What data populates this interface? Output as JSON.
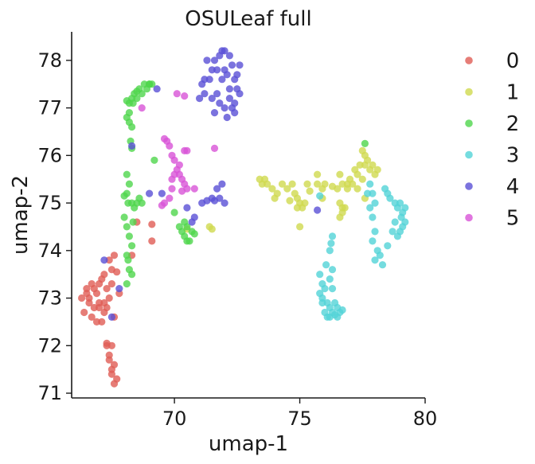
{
  "chart_data": {
    "type": "scatter",
    "title": "OSULeaf full",
    "xlabel": "umap-1",
    "ylabel": "umap-2",
    "xlim": [
      65.9,
      80.0
    ],
    "ylim": [
      70.9,
      78.6
    ],
    "xticks": [
      70,
      75,
      80
    ],
    "yticks": [
      71,
      72,
      73,
      74,
      75,
      76,
      77,
      78
    ],
    "legend_position": "right",
    "point_opacity": 0.8,
    "series": [
      {
        "name": "0",
        "color": "#e05c55",
        "points": [
          [
            66.3,
            73.0
          ],
          [
            66.4,
            72.7
          ],
          [
            66.5,
            73.2
          ],
          [
            66.6,
            72.9
          ],
          [
            66.7,
            73.3
          ],
          [
            66.8,
            72.8
          ],
          [
            66.9,
            73.1
          ],
          [
            67.0,
            72.9
          ],
          [
            67.1,
            73.4
          ],
          [
            67.2,
            72.9
          ],
          [
            66.5,
            73.1
          ],
          [
            66.7,
            72.6
          ],
          [
            66.9,
            72.5
          ],
          [
            67.0,
            72.8
          ],
          [
            67.2,
            73.5
          ],
          [
            67.3,
            73.2
          ],
          [
            67.4,
            73.0
          ],
          [
            67.5,
            73.3
          ],
          [
            67.3,
            72.8
          ],
          [
            67.6,
            72.6
          ],
          [
            67.1,
            72.5
          ],
          [
            67.5,
            73.6
          ],
          [
            67.6,
            73.9
          ],
          [
            67.7,
            73.55
          ],
          [
            67.4,
            73.8
          ],
          [
            67.8,
            73.1
          ],
          [
            67.2,
            72.7
          ],
          [
            66.8,
            73.2
          ],
          [
            67.0,
            73.3
          ],
          [
            66.6,
            73.0
          ],
          [
            67.3,
            72.05
          ],
          [
            67.5,
            72.0
          ],
          [
            67.4,
            71.8
          ],
          [
            67.6,
            71.6
          ],
          [
            67.5,
            71.4
          ],
          [
            67.7,
            71.3
          ],
          [
            67.6,
            71.2
          ],
          [
            67.5,
            71.5
          ],
          [
            67.4,
            71.7
          ],
          [
            67.3,
            72.0
          ],
          [
            68.5,
            74.6
          ],
          [
            69.1,
            74.55
          ],
          [
            69.1,
            74.2
          ],
          [
            68.3,
            73.9
          ]
        ]
      },
      {
        "name": "1",
        "color": "#cfd94f",
        "points": [
          [
            73.4,
            75.5
          ],
          [
            73.5,
            75.4
          ],
          [
            73.7,
            75.4
          ],
          [
            73.9,
            75.3
          ],
          [
            74.1,
            75.2
          ],
          [
            74.3,
            75.4
          ],
          [
            74.5,
            75.3
          ],
          [
            74.7,
            75.4
          ],
          [
            74.8,
            75.2
          ],
          [
            74.9,
            75.1
          ],
          [
            75.0,
            75.0
          ],
          [
            75.1,
            74.9
          ],
          [
            75.2,
            75.0
          ],
          [
            74.9,
            74.9
          ],
          [
            75.0,
            74.5
          ],
          [
            75.3,
            75.4
          ],
          [
            75.4,
            75.25
          ],
          [
            75.7,
            75.4
          ],
          [
            75.9,
            75.3
          ],
          [
            76.0,
            75.4
          ],
          [
            75.9,
            75.1
          ],
          [
            75.7,
            75.6
          ],
          [
            76.3,
            75.35
          ],
          [
            76.5,
            75.3
          ],
          [
            76.6,
            75.0
          ],
          [
            76.7,
            74.9
          ],
          [
            76.6,
            74.7
          ],
          [
            76.7,
            74.8
          ],
          [
            76.8,
            74.9
          ],
          [
            76.9,
            75.3
          ],
          [
            77.0,
            75.5
          ],
          [
            77.1,
            75.4
          ],
          [
            77.2,
            75.7
          ],
          [
            77.3,
            75.6
          ],
          [
            77.4,
            75.8
          ],
          [
            77.5,
            75.5
          ],
          [
            77.6,
            75.8
          ],
          [
            77.7,
            75.9
          ],
          [
            77.8,
            75.7
          ],
          [
            77.9,
            75.8
          ],
          [
            78.0,
            75.6
          ],
          [
            78.1,
            75.7
          ],
          [
            77.3,
            75.3
          ],
          [
            76.9,
            75.4
          ],
          [
            77.6,
            75.1
          ],
          [
            76.6,
            75.6
          ],
          [
            76.7,
            75.4
          ],
          [
            73.6,
            75.5
          ],
          [
            74.0,
            75.1
          ],
          [
            74.6,
            75.05
          ],
          [
            70.5,
            74.45
          ],
          [
            71.4,
            74.5
          ],
          [
            77.6,
            76.0
          ],
          [
            77.5,
            76.1
          ],
          [
            71.5,
            74.45
          ]
        ]
      },
      {
        "name": "2",
        "color": "#4fd64c",
        "points": [
          [
            68.2,
            77.1
          ],
          [
            68.3,
            77.2
          ],
          [
            68.4,
            77.3
          ],
          [
            68.5,
            77.2
          ],
          [
            68.6,
            77.4
          ],
          [
            68.8,
            77.5
          ],
          [
            69.0,
            77.5
          ],
          [
            69.1,
            77.5
          ],
          [
            68.9,
            77.4
          ],
          [
            68.7,
            77.3
          ],
          [
            68.35,
            77.1
          ],
          [
            68.1,
            76.8
          ],
          [
            68.2,
            76.7
          ],
          [
            68.3,
            76.6
          ],
          [
            68.25,
            76.3
          ],
          [
            68.3,
            76.15
          ],
          [
            68.1,
            75.6
          ],
          [
            68.2,
            75.4
          ],
          [
            68.1,
            75.2
          ],
          [
            68.15,
            75.0
          ],
          [
            68.0,
            74.7
          ],
          [
            68.1,
            74.5
          ],
          [
            68.2,
            74.3
          ],
          [
            68.3,
            74.1
          ],
          [
            68.15,
            73.8
          ],
          [
            68.2,
            73.6
          ],
          [
            68.3,
            73.5
          ],
          [
            68.1,
            73.3
          ],
          [
            68.4,
            74.9
          ],
          [
            68.5,
            75.0
          ],
          [
            68.6,
            75.1
          ],
          [
            68.35,
            74.6
          ],
          [
            68.7,
            75.0
          ],
          [
            68.3,
            75.0
          ],
          [
            68.0,
            75.15
          ],
          [
            70.0,
            74.8
          ],
          [
            70.2,
            74.5
          ],
          [
            70.3,
            74.4
          ],
          [
            70.4,
            74.3
          ],
          [
            70.5,
            74.2
          ],
          [
            70.6,
            74.2
          ],
          [
            70.7,
            74.4
          ],
          [
            70.8,
            74.35
          ],
          [
            70.4,
            74.6
          ],
          [
            70.5,
            74.5
          ],
          [
            69.2,
            75.9
          ],
          [
            68.1,
            73.9
          ],
          [
            77.6,
            76.25
          ],
          [
            69.0,
            77.5
          ],
          [
            68.5,
            77.35
          ],
          [
            68.1,
            77.15
          ],
          [
            68.2,
            76.9
          ]
        ]
      },
      {
        "name": "3",
        "color": "#52d3d7",
        "points": [
          [
            75.8,
            73.5
          ],
          [
            75.9,
            73.3
          ],
          [
            76.0,
            73.2
          ],
          [
            75.9,
            73.0
          ],
          [
            76.1,
            72.9
          ],
          [
            76.0,
            72.7
          ],
          [
            76.2,
            72.8
          ],
          [
            76.3,
            72.7
          ],
          [
            76.2,
            72.6
          ],
          [
            76.4,
            72.9
          ],
          [
            76.5,
            72.8
          ],
          [
            76.6,
            72.7
          ],
          [
            76.7,
            72.75
          ],
          [
            76.5,
            72.6
          ],
          [
            76.3,
            73.2
          ],
          [
            76.2,
            73.4
          ],
          [
            76.3,
            73.6
          ],
          [
            76.2,
            74.0
          ],
          [
            76.3,
            74.3
          ],
          [
            76.25,
            74.15
          ],
          [
            75.9,
            72.9
          ],
          [
            75.8,
            73.1
          ],
          [
            76.05,
            73.7
          ],
          [
            76.4,
            72.65
          ],
          [
            76.1,
            72.6
          ],
          [
            77.8,
            75.4
          ],
          [
            77.9,
            75.2
          ],
          [
            78.0,
            75.0
          ],
          [
            77.8,
            74.9
          ],
          [
            77.9,
            74.7
          ],
          [
            78.0,
            74.4
          ],
          [
            77.9,
            74.2
          ],
          [
            78.1,
            74.0
          ],
          [
            78.0,
            73.8
          ],
          [
            78.2,
            73.9
          ],
          [
            78.3,
            73.7
          ],
          [
            78.5,
            74.1
          ],
          [
            78.7,
            74.4
          ],
          [
            78.8,
            74.6
          ],
          [
            78.9,
            74.9
          ],
          [
            79.0,
            75.0
          ],
          [
            79.1,
            74.8
          ],
          [
            79.2,
            74.6
          ],
          [
            79.0,
            74.4
          ],
          [
            79.1,
            74.5
          ],
          [
            78.8,
            75.0
          ],
          [
            78.9,
            74.3
          ],
          [
            79.05,
            74.7
          ],
          [
            78.6,
            75.1
          ],
          [
            78.4,
            75.3
          ],
          [
            78.5,
            75.2
          ],
          [
            79.2,
            74.9
          ],
          [
            77.7,
            75.2
          ],
          [
            75.8,
            75.15
          ]
        ]
      },
      {
        "name": "4",
        "color": "#5a50d6",
        "points": [
          [
            71.4,
            77.6
          ],
          [
            71.5,
            77.8
          ],
          [
            71.6,
            78.0
          ],
          [
            71.8,
            78.1
          ],
          [
            72.0,
            78.2
          ],
          [
            72.2,
            78.1
          ],
          [
            72.3,
            77.9
          ],
          [
            72.4,
            77.6
          ],
          [
            72.5,
            77.4
          ],
          [
            72.4,
            77.1
          ],
          [
            72.2,
            77.2
          ],
          [
            72.0,
            77.0
          ],
          [
            71.8,
            77.1
          ],
          [
            71.7,
            77.3
          ],
          [
            71.9,
            77.6
          ],
          [
            72.1,
            77.7
          ],
          [
            72.2,
            77.4
          ],
          [
            72.3,
            77.0
          ],
          [
            72.4,
            76.9
          ],
          [
            72.0,
            77.8
          ],
          [
            71.2,
            77.3
          ],
          [
            71.0,
            77.2
          ],
          [
            71.1,
            77.5
          ],
          [
            72.5,
            77.7
          ],
          [
            72.6,
            77.3
          ],
          [
            71.6,
            76.9
          ],
          [
            72.1,
            76.8
          ],
          [
            71.7,
            77.8
          ],
          [
            71.9,
            78.2
          ],
          [
            71.3,
            78.0
          ],
          [
            72.6,
            77.9
          ],
          [
            71.5,
            77.2
          ],
          [
            71.2,
            77.6
          ],
          [
            71.1,
            75.0
          ],
          [
            71.3,
            75.05
          ],
          [
            71.5,
            75.1
          ],
          [
            71.7,
            75.3
          ],
          [
            71.8,
            75.1
          ],
          [
            71.9,
            75.4
          ],
          [
            72.0,
            75.0
          ],
          [
            70.8,
            74.7
          ],
          [
            70.7,
            74.6
          ],
          [
            69.0,
            75.2
          ],
          [
            69.5,
            75.2
          ],
          [
            70.5,
            74.9
          ],
          [
            69.3,
            77.4
          ],
          [
            68.3,
            76.2
          ],
          [
            67.5,
            72.6
          ],
          [
            67.2,
            73.8
          ],
          [
            67.8,
            73.2
          ],
          [
            75.7,
            74.85
          ],
          [
            71.6,
            75.05
          ]
        ]
      },
      {
        "name": "5",
        "color": "#d854d7",
        "points": [
          [
            69.6,
            76.35
          ],
          [
            69.7,
            76.3
          ],
          [
            69.8,
            76.2
          ],
          [
            69.9,
            76.0
          ],
          [
            70.0,
            75.9
          ],
          [
            70.1,
            75.7
          ],
          [
            70.2,
            75.6
          ],
          [
            70.3,
            75.5
          ],
          [
            70.4,
            75.4
          ],
          [
            70.5,
            75.3
          ],
          [
            70.0,
            75.6
          ],
          [
            69.9,
            75.3
          ],
          [
            69.8,
            75.1
          ],
          [
            69.6,
            75.0
          ],
          [
            69.5,
            74.95
          ],
          [
            69.9,
            75.5
          ],
          [
            70.2,
            75.8
          ],
          [
            70.4,
            76.1
          ],
          [
            70.5,
            76.1
          ],
          [
            71.6,
            76.15
          ],
          [
            70.1,
            77.3
          ],
          [
            70.4,
            77.25
          ],
          [
            68.7,
            77.0
          ],
          [
            70.8,
            75.3
          ],
          [
            70.3,
            75.25
          ]
        ]
      }
    ]
  }
}
